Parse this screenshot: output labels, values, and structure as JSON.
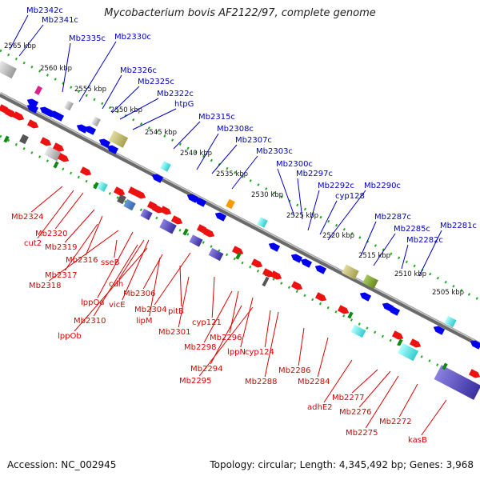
{
  "title": "Mycobacterium bovis AF2122/97, complete genome",
  "accession": "Accession: NC_002945",
  "summary": "Topology: circular; Length: 4,345,492 bp; Genes: 3,968",
  "colors": {
    "forward_label": "#0000c8",
    "reverse_label": "#dd0000",
    "backbone": "#8a8a8a",
    "dotted_track": "#22aa22"
  },
  "kbp_ticks": [
    "2565 kbp",
    "2560 kbp",
    "2555 kbp",
    "2550 kbp",
    "2545 kbp",
    "2540 kbp",
    "2535 kbp",
    "2530 kbp",
    "2525 kbp",
    "2520 kbp",
    "2515 kbp",
    "2510 kbp",
    "2505 kbp"
  ],
  "forward_genes": [
    "Mb2342c",
    "Mb2341c",
    "Mb2335c",
    "Mb2330c",
    "Mb2326c",
    "Mb2325c",
    "Mb2322c",
    "htpG",
    "Mb2315c",
    "Mb2308c",
    "Mb2307c",
    "Mb2303c",
    "Mb2300c",
    "Mb2297c",
    "Mb2292c",
    "cyp128",
    "Mb2290c",
    "Mb2287c",
    "Mb2285c",
    "Mb2282c",
    "Mb2281c"
  ],
  "reverse_genes": [
    "Mb2324",
    "Mb2320",
    "cut2",
    "Mb2319",
    "Mb2316",
    "Mb2317",
    "Mb2318",
    "sseB",
    "cdh",
    "lppOa",
    "Mb2306",
    "vicE",
    "Mb2304",
    "Mb2310",
    "pitB",
    "lipM",
    "lppOb",
    "Mb2301",
    "cyp121",
    "Mb2296",
    "Mb2298",
    "lppN",
    "cyp124",
    "Mb2294",
    "Mb2295",
    "Mb2288",
    "Mb2286",
    "Mb2284",
    "adhE2",
    "Mb2277",
    "Mb2276",
    "Mb2275",
    "Mb2272",
    "kasB"
  ]
}
